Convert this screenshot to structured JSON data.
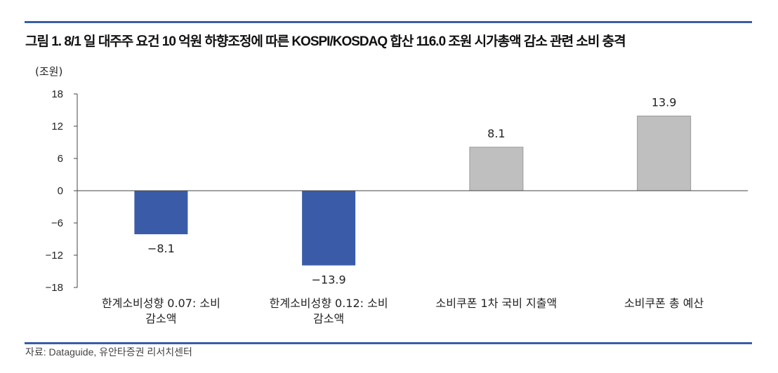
{
  "title": "그림 1. 8/1 일 대주주 요건 10 억원 하향조정에 따른 KOSPI/KOSDAQ 합산 116.0 조원 시가총액 감소 관련 소비 충격",
  "source": "자료: Dataguide, 유안타증권 리서치센터",
  "chart_data": {
    "type": "bar",
    "ylabel": "(조원)",
    "ylim": [
      -18,
      18
    ],
    "yticks": [
      18,
      12,
      6,
      0,
      -6,
      -12,
      -18
    ],
    "ytick_labels": [
      "18",
      "12",
      "6",
      "0",
      "−6",
      "−12",
      "−18"
    ],
    "categories": [
      [
        "한계소비성향 0.07: 소비",
        "감소액"
      ],
      [
        "한계소비성향 0.12: 소비",
        "감소액"
      ],
      [
        "소비쿠폰 1차 국비 지출액"
      ],
      [
        "소비쿠폰 총 예산"
      ]
    ],
    "values": [
      -8.1,
      -13.9,
      8.1,
      13.9
    ],
    "data_labels": [
      "−8.1",
      "−13.9",
      "8.1",
      "13.9"
    ],
    "colors": [
      "#3a5ca8",
      "#3a5ca8",
      "#bfbfbf",
      "#bfbfbf"
    ],
    "grid": false
  }
}
